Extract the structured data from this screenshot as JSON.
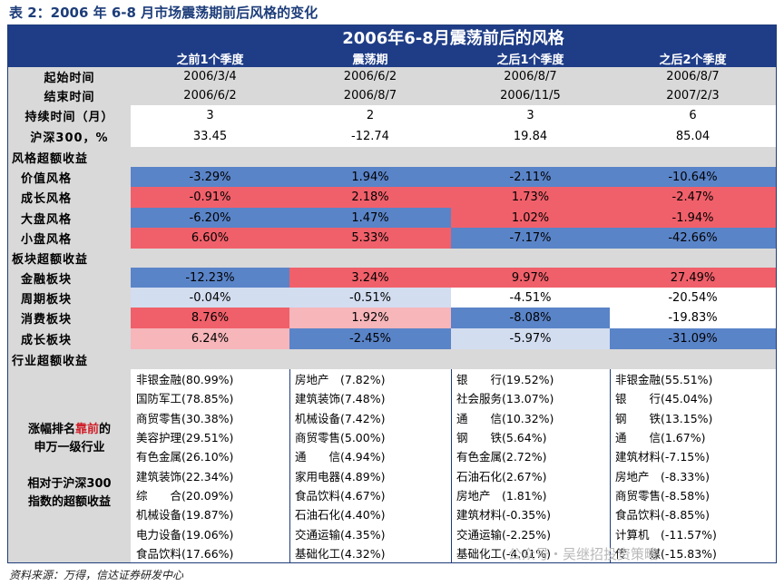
{
  "caption": "表 2：2006 年 6-8 月市场震荡期前后风格的变化",
  "title": "2006年6-8月震荡前后的风格",
  "columns": [
    "之前1个季度",
    "震荡期",
    "之后1个季度",
    "之后2个季度"
  ],
  "start_time": {
    "label": "起始时间",
    "values": [
      "2006/3/4",
      "2006/6/2",
      "2006/8/7",
      "2006/8/7"
    ]
  },
  "end_time": {
    "label": "结束时间",
    "values": [
      "2006/6/2",
      "2006/8/7",
      "2006/11/5",
      "2007/2/3"
    ]
  },
  "duration": {
    "label": "持续时间（月）",
    "values": [
      "3",
      "2",
      "3",
      "6"
    ]
  },
  "hs300": {
    "label": "沪深300，%",
    "values": [
      "33.45",
      "-12.74",
      "19.84",
      "85.04"
    ]
  },
  "style_section": "风格超额收益",
  "style_rows": [
    {
      "label": "价值风格",
      "values": [
        "-3.29%",
        "1.94%",
        "-2.11%",
        "-10.64%"
      ]
    },
    {
      "label": "成长风格",
      "values": [
        "-0.91%",
        "2.18%",
        "1.73%",
        "-2.47%"
      ]
    },
    {
      "label": "大盘风格",
      "values": [
        "-6.20%",
        "1.47%",
        "1.02%",
        "-1.94%"
      ]
    },
    {
      "label": "小盘风格",
      "values": [
        "6.60%",
        "5.33%",
        "-7.17%",
        "-42.66%"
      ]
    }
  ],
  "sector_section": "板块超额收益",
  "sector_rows": [
    {
      "label": "金融板块",
      "values": [
        "-12.23%",
        "3.24%",
        "9.97%",
        "27.49%"
      ]
    },
    {
      "label": "周期板块",
      "values": [
        "-0.04%",
        "-0.51%",
        "-4.51%",
        "-20.54%"
      ]
    },
    {
      "label": "消费板块",
      "values": [
        "8.76%",
        "1.92%",
        "-8.08%",
        "-19.83%"
      ]
    },
    {
      "label": "成长板块",
      "values": [
        "6.24%",
        "-2.45%",
        "-5.97%",
        "-31.09%"
      ]
    }
  ],
  "industry_section": "行业超额收益",
  "side_label": {
    "line1_pre": "涨幅排名",
    "line1_accent": "靠前",
    "line1_post": "的",
    "line2": "申万一级行业",
    "line3": "相对于沪深300",
    "line4": "指数的超额收益"
  },
  "industry_rows": [
    [
      "非银金融(80.99%)",
      "房地产　(7.82%)",
      "银　　行(19.52%)",
      "非银金融(55.51%)"
    ],
    [
      "国防军工(78.85%)",
      "建筑装饰(7.48%)",
      "社会服务(13.07%)",
      "银　　行(45.04%)"
    ],
    [
      "商贸零售(30.38%)",
      "机械设备(7.42%)",
      "通　　信(10.32%)",
      "钢　　铁(13.15%)"
    ],
    [
      "美容护理(29.51%)",
      "商贸零售(5.00%)",
      "钢　　铁(5.64%)",
      "通　　信(1.67%)"
    ],
    [
      "有色金属(26.10%)",
      "通　　信(4.94%)",
      "有色金属(2.72%)",
      "建筑材料(-7.15%)"
    ],
    [
      "建筑装饰(22.34%)",
      "家用电器(4.89%)",
      "石油石化(2.67%)",
      "房地产　(-8.33%)"
    ],
    [
      "综　　合(20.09%)",
      "食品饮料(4.67%)",
      "房地产　(1.81%)",
      "商贸零售(-8.58%)"
    ],
    [
      "机械设备(19.87%)",
      "石油石化(4.40%)",
      "建筑材料(-0.35%)",
      "食品饮料(-8.85%)"
    ],
    [
      "电力设备(19.06%)",
      "交通运输(4.35%)",
      "交通运输(-2.25%)",
      "计算机　(-11.57%)"
    ],
    [
      "食品饮料(17.66%)",
      "基础化工(4.32%)",
      "基础化工(-4.01%)",
      "传　　媒(-15.83%)"
    ]
  ],
  "footer": "资料来源：万得，信达证券研发中心",
  "watermark": "公众号・吴继招投资策略",
  "colors": {
    "header": "#1f3d87",
    "blue": "#5a84c8",
    "light_blue": "#d2ddf0",
    "red": "#f0606a",
    "pink": "#f6b6ba",
    "gray": "#d9d9d9"
  }
}
